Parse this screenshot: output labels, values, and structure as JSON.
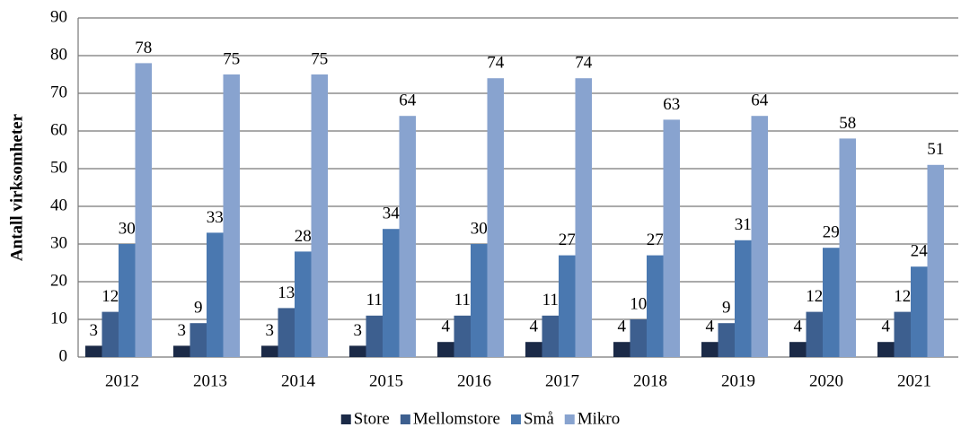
{
  "chart_data": {
    "type": "bar",
    "y_label": "Antall virksomheter",
    "categories": [
      "2012",
      "2013",
      "2014",
      "2015",
      "2016",
      "2017",
      "2018",
      "2019",
      "2020",
      "2021"
    ],
    "series": [
      {
        "name": "Store",
        "color": "#1b2a47",
        "values": [
          3,
          3,
          3,
          3,
          4,
          4,
          4,
          4,
          4,
          4
        ]
      },
      {
        "name": "Mellomstore",
        "color": "#3d5f8f",
        "values": [
          12,
          9,
          13,
          11,
          11,
          11,
          10,
          9,
          12,
          12
        ]
      },
      {
        "name": "Små",
        "color": "#4a78b0",
        "values": [
          30,
          33,
          28,
          34,
          30,
          27,
          27,
          31,
          29,
          24
        ]
      },
      {
        "name": "Mikro",
        "color": "#88a3cf",
        "values": [
          78,
          75,
          75,
          64,
          74,
          74,
          63,
          64,
          58,
          51
        ]
      }
    ],
    "ylim": [
      0,
      90
    ],
    "yticks": [
      0,
      10,
      20,
      30,
      40,
      50,
      60,
      70,
      80,
      90
    ],
    "grid": true,
    "legend": "bottom"
  }
}
